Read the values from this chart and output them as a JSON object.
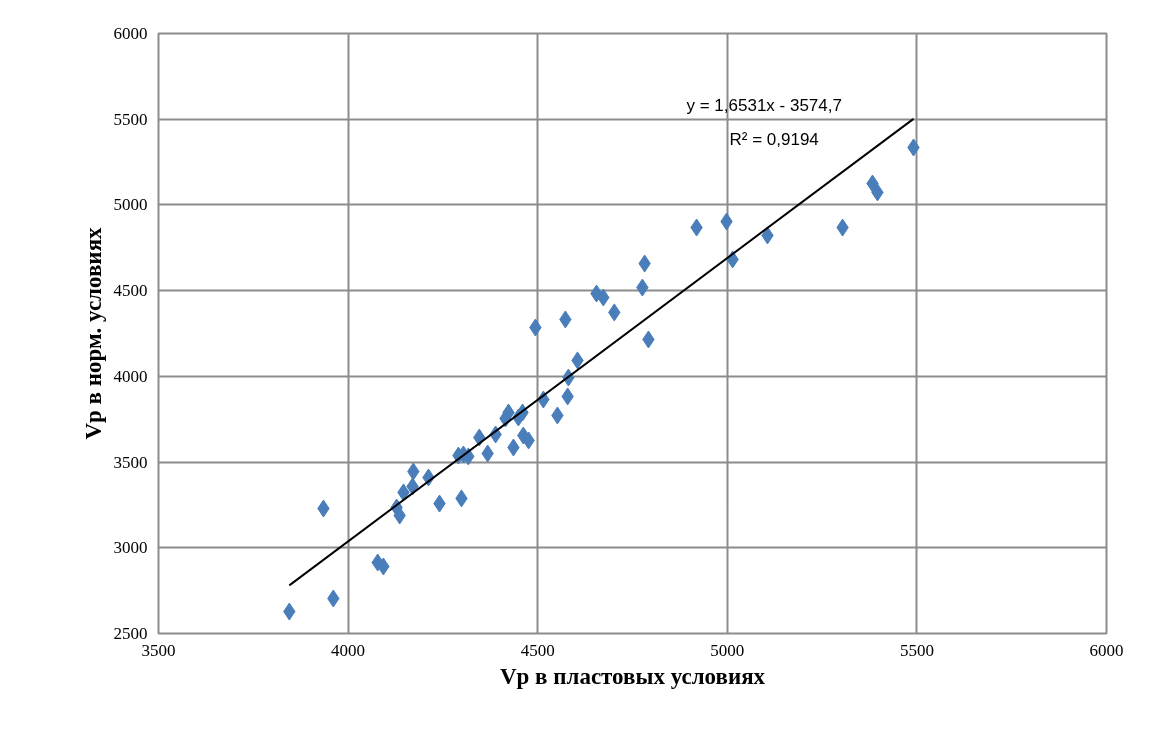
{
  "chart_data": {
    "type": "scatter",
    "xlabel": "Vp в пластовых условиях",
    "ylabel": "Vp в норм. условиях",
    "xlim": [
      3500,
      6000
    ],
    "xticks": [
      3500,
      4000,
      4500,
      5000,
      5500,
      6000
    ],
    "ylim": [
      2500,
      6000
    ],
    "yticks": [
      2500,
      3000,
      3500,
      4000,
      4500,
      5000,
      5500,
      6000
    ],
    "grid": true,
    "marker": "diamond",
    "annotations": [
      "y = 1,6531x - 3574,7",
      "R² = 0,9194"
    ],
    "series": [
      {
        "color": "#4a7ebb",
        "x": [
          3845,
          3935,
          3961,
          4078,
          4093,
          4128,
          4136,
          4146,
          4170,
          4172,
          4212,
          4241,
          4299,
          4291,
          4304,
          4317,
          4346,
          4368,
          4389,
          4415,
          4423,
          4449,
          4460,
          4436,
          4462,
          4476,
          4515,
          4552,
          4579,
          4581,
          4605,
          4494,
          4573,
          4655,
          4673,
          4702,
          4776,
          4782,
          4792,
          4919,
          4998,
          5014,
          5106,
          5304,
          5383,
          5396,
          5491
        ],
        "values": [
          2628,
          3229,
          2704,
          2914,
          2891,
          3235,
          3188,
          3323,
          3358,
          3445,
          3410,
          3258,
          3288,
          3538,
          3544,
          3533,
          3643,
          3550,
          3661,
          3754,
          3789,
          3760,
          3789,
          3585,
          3655,
          3626,
          3865,
          3772,
          3883,
          3993,
          4093,
          4285,
          4332,
          4483,
          4460,
          4373,
          4518,
          4658,
          4215,
          4868,
          4903,
          4682,
          4822,
          4868,
          5125,
          5073,
          5335
        ]
      },
      {
        "type": "line",
        "color": "#000000",
        "marker": "none",
        "x": [
          3845,
          5491
        ],
        "values": [
          2781,
          5502
        ]
      }
    ]
  }
}
